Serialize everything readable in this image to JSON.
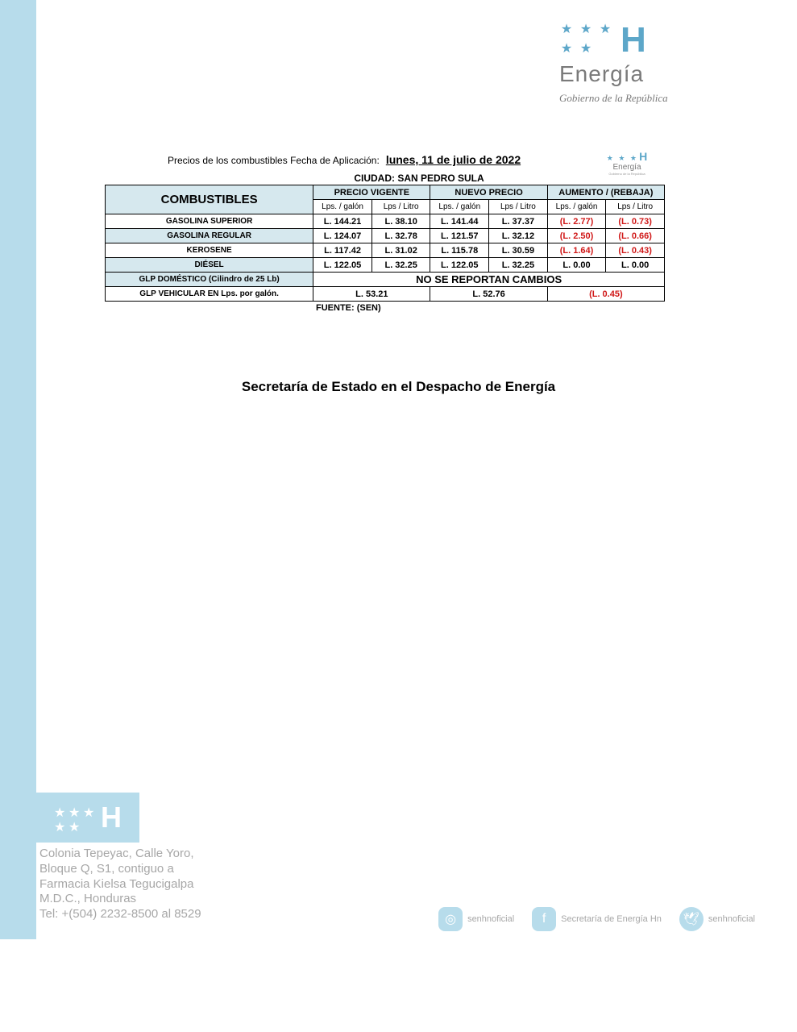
{
  "colors": {
    "left_stripe": "#b7dceb",
    "accent": "#5da7c9",
    "gray_text": "#7a7a7a",
    "header_bg": "#d6e8ee",
    "negative": "#d01818",
    "footer_gray": "#a7a7a7"
  },
  "header_logo": {
    "brand": "Energía",
    "subtitle": "Gobierno de la República"
  },
  "table_header": {
    "application_label": "Precios de los combustibles Fecha de Aplicación:",
    "application_date": "lunes, 11 de julio de 2022",
    "city_label": "CIUDAD: SAN PEDRO SULA"
  },
  "columns": {
    "combustibles": "COMBUSTIBLES",
    "precio_vigente": "PRECIO VIGENTE",
    "nuevo_precio": "NUEVO PRECIO",
    "aumento_rebaja": "AUMENTO / (REBAJA)",
    "lps_galon": "Lps. / galón",
    "lps_litro": "Lps / Litro"
  },
  "fuels": [
    {
      "name": "GASOLINA SUPERIOR",
      "pv_gal": "L. 144.21",
      "pv_lit": "L. 38.10",
      "np_gal": "L. 141.44",
      "np_lit": "L. 37.37",
      "ar_gal": "(L. 2.77)",
      "ar_lit": "(L. 0.73)",
      "neg": true,
      "bg": false
    },
    {
      "name": "GASOLINA REGULAR",
      "pv_gal": "L. 124.07",
      "pv_lit": "L. 32.78",
      "np_gal": "L. 121.57",
      "np_lit": "L. 32.12",
      "ar_gal": "(L. 2.50)",
      "ar_lit": "(L. 0.66)",
      "neg": true,
      "bg": true
    },
    {
      "name": "KEROSENE",
      "pv_gal": "L. 117.42",
      "pv_lit": "L. 31.02",
      "np_gal": "L. 115.78",
      "np_lit": "L. 30.59",
      "ar_gal": "(L. 1.64)",
      "ar_lit": "(L. 0.43)",
      "neg": true,
      "bg": false
    },
    {
      "name": "DIÉSEL",
      "pv_gal": "L. 122.05",
      "pv_lit": "L. 32.25",
      "np_gal": "L. 122.05",
      "np_lit": "L. 32.25",
      "ar_gal": "L. 0.00",
      "ar_lit": "L. 0.00",
      "neg": false,
      "bg": true
    }
  ],
  "glp_domestico": {
    "name": "GLP DOMÉSTICO (Cilindro de 25 Lb)",
    "text": "NO SE REPORTAN CAMBIOS",
    "bg": true
  },
  "glp_vehicular": {
    "name": "GLP VEHICULAR EN Lps. por galón.",
    "pv": "L. 53.21",
    "np": "L. 52.76",
    "ar": "(L. 0.45)",
    "neg": true,
    "bg": false
  },
  "source": "FUENTE: (SEN)",
  "secretaria": "Secretaría de Estado en el Despacho de Energía",
  "footer": {
    "address_lines": [
      "Colonia Tepeyac, Calle Yoro,",
      "Bloque Q, S1, contiguo a",
      "Farmacia Kielsa Tegucigalpa",
      "M.D.C., Honduras",
      "Tel: +(504) 2232-8500 al 8529"
    ],
    "social": [
      {
        "icon": "instagram",
        "label": "senhnoficial"
      },
      {
        "icon": "facebook",
        "label": "Secretaría de Energía Hn"
      },
      {
        "icon": "twitter",
        "label": "senhnoficial"
      }
    ]
  }
}
